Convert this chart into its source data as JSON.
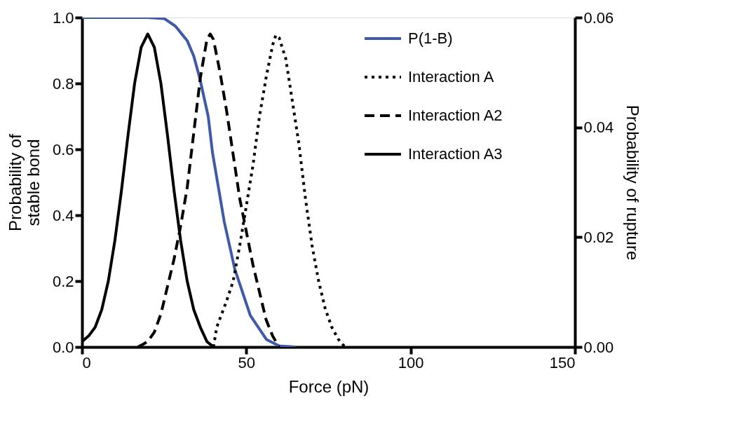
{
  "chart_data": {
    "type": "line",
    "xlabel": "Force (pN)",
    "ylabel": "Probability of\nstable bond",
    "y2label": "Probability of rupture",
    "xlim": [
      0,
      150
    ],
    "xticks": [
      0,
      50,
      100,
      150
    ],
    "ylim": [
      0,
      1
    ],
    "yticks": [
      {
        "value": 0,
        "label": "0.0"
      },
      0.2,
      0.4,
      0.6,
      0.8,
      {
        "value": 1,
        "label": "1.0"
      }
    ],
    "y2lim": [
      0,
      0.06
    ],
    "y2ticks": [
      {
        "value": 0,
        "label": "0.00"
      },
      0.02,
      0.04,
      0.06
    ],
    "grid": false,
    "legend": "top right",
    "marker": "none",
    "series": [
      {
        "name": "P(1-B)",
        "color": "#3f5aa8",
        "line_style": "solid",
        "axis": "y",
        "x": [
          0,
          20,
          25,
          28.4,
          32,
          34,
          35.8,
          38.4,
          39.7,
          43.3,
          46.5,
          51.2,
          56.1,
          60,
          65
        ],
        "values": [
          1,
          1,
          0.997,
          0.974,
          0.93,
          0.883,
          0.817,
          0.7,
          0.59,
          0.379,
          0.236,
          0.096,
          0.023,
          0.003,
          0
        ]
      },
      {
        "name": "Interaction A",
        "color": "#000000",
        "line_style": "dotted",
        "axis": "y2",
        "x": [
          40,
          41,
          44,
          46,
          48,
          50,
          52,
          54,
          56,
          58,
          59,
          60,
          62,
          64,
          66,
          68,
          70,
          72,
          74,
          76,
          78,
          80
        ],
        "values": [
          0,
          0.0036,
          0.0084,
          0.012,
          0.0185,
          0.0257,
          0.033,
          0.042,
          0.049,
          0.055,
          0.0568,
          0.0563,
          0.0525,
          0.0448,
          0.037,
          0.027,
          0.0185,
          0.012,
          0.007,
          0.0036,
          0.0014,
          0
        ]
      },
      {
        "name": "Interaction A2",
        "color": "#000000",
        "line_style": "dashed",
        "axis": "y2",
        "x": [
          17,
          18,
          20,
          22,
          24,
          26,
          28,
          30,
          32,
          34,
          36,
          38,
          39,
          40,
          42,
          44,
          46,
          48,
          50,
          52,
          54,
          56,
          58,
          60
        ],
        "values": [
          0,
          0.0003,
          0.001,
          0.0027,
          0.006,
          0.011,
          0.016,
          0.022,
          0.029,
          0.039,
          0.049,
          0.056,
          0.057,
          0.056,
          0.05,
          0.043,
          0.035,
          0.027,
          0.021,
          0.015,
          0.01,
          0.005,
          0.002,
          0
        ]
      },
      {
        "name": "Interaction A3",
        "color": "#000000",
        "line_style": "solid",
        "axis": "y2",
        "x": [
          0,
          2,
          4,
          6,
          8,
          10,
          12,
          14,
          16,
          18,
          20,
          22,
          24,
          26,
          28,
          30,
          32,
          34,
          36,
          38,
          40
        ],
        "values": [
          0.001,
          0.002,
          0.0036,
          0.0068,
          0.012,
          0.0194,
          0.0285,
          0.0386,
          0.048,
          0.0546,
          0.057,
          0.0546,
          0.048,
          0.0386,
          0.0285,
          0.0194,
          0.012,
          0.0068,
          0.0036,
          0.001,
          0
        ]
      }
    ]
  }
}
